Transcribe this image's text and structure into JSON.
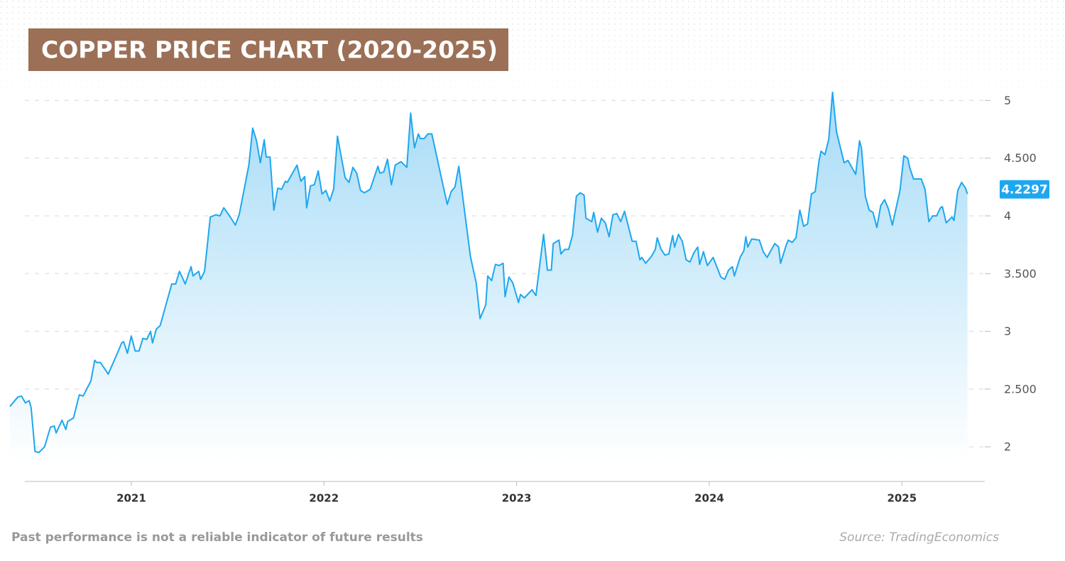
{
  "chart_data": {
    "type": "area",
    "title": "COPPER PRICE CHART (2020-2025)",
    "footnote": "Past performance is not a reliable indicator of future results",
    "source": "Source: TradingEconomics",
    "current_value": 4.2297,
    "color": "#1ea7ef",
    "grid": true,
    "xlim": [
      2020.37,
      2025.43
    ],
    "xticks": [
      2021,
      2022,
      2023,
      2024,
      2025
    ],
    "ylim": [
      1.7,
      5.15
    ],
    "yticks": [
      2,
      {
        "value": 2.5,
        "label": "2.500"
      },
      3,
      {
        "value": 3.5,
        "label": "3.500"
      },
      4,
      {
        "value": 4.5,
        "label": "4.500"
      },
      5
    ],
    "x": [
      2020.37,
      2020.41,
      2020.43,
      2020.45,
      2020.47,
      2020.48,
      2020.5,
      2020.52,
      2020.55,
      2020.58,
      2020.6,
      2020.61,
      2020.64,
      2020.66,
      2020.67,
      2020.7,
      2020.73,
      2020.75,
      2020.79,
      2020.81,
      2020.82,
      2020.84,
      2020.88,
      2020.93,
      2020.95,
      2020.96,
      2020.98,
      2021.0,
      2021.02,
      2021.04,
      2021.06,
      2021.08,
      2021.1,
      2021.11,
      2021.13,
      2021.15,
      2021.21,
      2021.23,
      2021.25,
      2021.28,
      2021.31,
      2021.32,
      2021.35,
      2021.36,
      2021.38,
      2021.41,
      2021.44,
      2021.46,
      2021.48,
      2021.51,
      2021.54,
      2021.56,
      2021.61,
      2021.63,
      2021.65,
      2021.67,
      2021.69,
      2021.7,
      2021.72,
      2021.74,
      2021.76,
      2021.78,
      2021.8,
      2021.81,
      2021.86,
      2021.88,
      2021.9,
      2021.91,
      2021.93,
      2021.95,
      2021.97,
      2021.99,
      2022.01,
      2022.03,
      2022.05,
      2022.07,
      2022.11,
      2022.13,
      2022.15,
      2022.17,
      2022.19,
      2022.21,
      2022.24,
      2022.28,
      2022.29,
      2022.31,
      2022.33,
      2022.35,
      2022.37,
      2022.4,
      2022.43,
      2022.45,
      2022.47,
      2022.49,
      2022.5,
      2022.52,
      2022.54,
      2022.56,
      2022.62,
      2022.64,
      2022.66,
      2022.68,
      2022.7,
      2022.76,
      2022.79,
      2022.81,
      2022.84,
      2022.85,
      2022.87,
      2022.89,
      2022.91,
      2022.93,
      2022.94,
      2022.96,
      2022.98,
      2023.01,
      2023.02,
      2023.04,
      2023.08,
      2023.1,
      2023.14,
      2023.16,
      2023.18,
      2023.19,
      2023.22,
      2023.23,
      2023.25,
      2023.27,
      2023.29,
      2023.31,
      2023.33,
      2023.35,
      2023.36,
      2023.39,
      2023.4,
      2023.42,
      2023.44,
      2023.46,
      2023.48,
      2023.5,
      2023.52,
      2023.54,
      2023.56,
      2023.58,
      2023.6,
      2023.62,
      2023.64,
      2023.65,
      2023.67,
      2023.7,
      2023.72,
      2023.73,
      2023.75,
      2023.77,
      2023.79,
      2023.81,
      2023.82,
      2023.84,
      2023.86,
      2023.88,
      2023.9,
      2023.92,
      2023.94,
      2023.95,
      2023.97,
      2023.99,
      2024.02,
      2024.06,
      2024.08,
      2024.1,
      2024.12,
      2024.13,
      2024.16,
      2024.18,
      2024.19,
      2024.2,
      2024.22,
      2024.26,
      2024.28,
      2024.3,
      2024.34,
      2024.36,
      2024.37,
      2024.4,
      2024.41,
      2024.43,
      2024.45,
      2024.47,
      2024.49,
      2024.51,
      2024.53,
      2024.55,
      2024.57,
      2024.58,
      2024.6,
      2024.62,
      2024.64,
      2024.66,
      2024.7,
      2024.72,
      2024.76,
      2024.78,
      2024.79,
      2024.81,
      2024.83,
      2024.85,
      2024.87,
      2024.89,
      2024.91,
      2024.93,
      2024.95,
      2024.99,
      2025.01,
      2025.03,
      2025.04,
      2025.06,
      2025.1,
      2025.12,
      2025.14,
      2025.16,
      2025.18,
      2025.2,
      2025.21,
      2025.23,
      2025.26,
      2025.27,
      2025.29,
      2025.31,
      2025.33,
      2025.34
    ],
    "values": [
      2.35,
      2.43,
      2.44,
      2.38,
      2.4,
      2.34,
      1.96,
      1.95,
      2.0,
      2.17,
      2.18,
      2.12,
      2.23,
      2.15,
      2.22,
      2.25,
      2.45,
      2.44,
      2.57,
      2.75,
      2.73,
      2.73,
      2.63,
      2.82,
      2.9,
      2.91,
      2.81,
      2.96,
      2.83,
      2.83,
      2.94,
      2.93,
      3.0,
      2.9,
      3.02,
      3.05,
      3.41,
      3.41,
      3.52,
      3.41,
      3.56,
      3.48,
      3.52,
      3.45,
      3.52,
      3.99,
      4.01,
      4.0,
      4.07,
      4.0,
      3.92,
      4.01,
      4.44,
      4.76,
      4.65,
      4.46,
      4.66,
      4.51,
      4.51,
      4.05,
      4.24,
      4.23,
      4.3,
      4.29,
      4.44,
      4.3,
      4.34,
      4.07,
      4.26,
      4.27,
      4.39,
      4.19,
      4.22,
      4.13,
      4.23,
      4.69,
      4.33,
      4.29,
      4.42,
      4.37,
      4.22,
      4.2,
      4.23,
      4.43,
      4.37,
      4.38,
      4.49,
      4.27,
      4.44,
      4.47,
      4.42,
      4.89,
      4.59,
      4.71,
      4.67,
      4.67,
      4.71,
      4.71,
      4.25,
      4.1,
      4.21,
      4.25,
      4.43,
      3.65,
      3.42,
      3.11,
      3.23,
      3.48,
      3.44,
      3.58,
      3.57,
      3.59,
      3.3,
      3.47,
      3.42,
      3.25,
      3.32,
      3.29,
      3.36,
      3.31,
      3.84,
      3.53,
      3.53,
      3.76,
      3.79,
      3.67,
      3.71,
      3.71,
      3.83,
      4.17,
      4.2,
      4.18,
      3.98,
      3.95,
      4.03,
      3.86,
      3.98,
      3.94,
      3.82,
      4.01,
      4.02,
      3.95,
      4.04,
      3.91,
      3.78,
      3.78,
      3.62,
      3.64,
      3.59,
      3.65,
      3.71,
      3.81,
      3.71,
      3.66,
      3.67,
      3.83,
      3.73,
      3.84,
      3.78,
      3.62,
      3.6,
      3.68,
      3.73,
      3.58,
      3.69,
      3.57,
      3.64,
      3.47,
      3.45,
      3.53,
      3.56,
      3.48,
      3.64,
      3.7,
      3.82,
      3.73,
      3.8,
      3.79,
      3.69,
      3.64,
      3.76,
      3.73,
      3.59,
      3.75,
      3.79,
      3.77,
      3.81,
      4.05,
      3.91,
      3.93,
      4.19,
      4.21,
      4.48,
      4.56,
      4.53,
      4.66,
      5.07,
      4.73,
      4.46,
      4.48,
      4.36,
      4.65,
      4.59,
      4.17,
      4.05,
      4.03,
      3.9,
      4.09,
      4.14,
      4.06,
      3.92,
      4.22,
      4.52,
      4.5,
      4.42,
      4.32,
      4.32,
      4.23,
      3.95,
      4.0,
      4.0,
      4.07,
      4.08,
      3.94,
      3.99,
      3.96,
      4.22,
      4.29,
      4.24,
      4.19
    ]
  }
}
